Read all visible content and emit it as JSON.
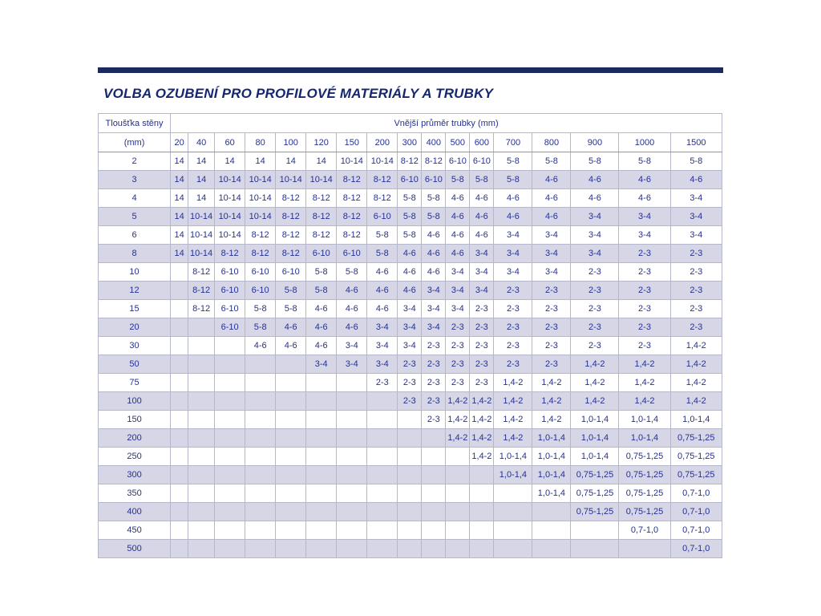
{
  "title": "VOLBA OZUBENÍ PRO PROFILOVÉ MATERIÁLY A TRUBKY",
  "colors": {
    "accent_bar": "#1b2a5e",
    "title_text": "#15276f",
    "cell_text": "#253191",
    "row_alt_background": "#d6d6e6",
    "grid_border": "#b4b8ca",
    "background": "#ffffff"
  },
  "table": {
    "corner_top": "Tloušťka stěny",
    "corner_unit": "(mm)",
    "span_header": "Vnější průměr trubky (mm)",
    "columns": [
      "20",
      "40",
      "60",
      "80",
      "100",
      "120",
      "150",
      "200",
      "300",
      "400",
      "500",
      "600",
      "700",
      "800",
      "900",
      "1000",
      "1500"
    ],
    "rows": [
      {
        "label": "2",
        "values": [
          "14",
          "14",
          "14",
          "14",
          "14",
          "14",
          "10-14",
          "10-14",
          "8-12",
          "8-12",
          "6-10",
          "6-10",
          "5-8",
          "5-8",
          "5-8",
          "5-8",
          "5-8"
        ]
      },
      {
        "label": "3",
        "values": [
          "14",
          "14",
          "10-14",
          "10-14",
          "10-14",
          "10-14",
          "8-12",
          "8-12",
          "6-10",
          "6-10",
          "5-8",
          "5-8",
          "5-8",
          "4-6",
          "4-6",
          "4-6",
          "4-6"
        ]
      },
      {
        "label": "4",
        "values": [
          "14",
          "14",
          "10-14",
          "10-14",
          "8-12",
          "8-12",
          "8-12",
          "8-12",
          "5-8",
          "5-8",
          "4-6",
          "4-6",
          "4-6",
          "4-6",
          "4-6",
          "4-6",
          "3-4"
        ]
      },
      {
        "label": "5",
        "values": [
          "14",
          "10-14",
          "10-14",
          "10-14",
          "8-12",
          "8-12",
          "8-12",
          "6-10",
          "5-8",
          "5-8",
          "4-6",
          "4-6",
          "4-6",
          "4-6",
          "3-4",
          "3-4",
          "3-4"
        ]
      },
      {
        "label": "6",
        "values": [
          "14",
          "10-14",
          "10-14",
          "8-12",
          "8-12",
          "8-12",
          "8-12",
          "5-8",
          "5-8",
          "4-6",
          "4-6",
          "4-6",
          "3-4",
          "3-4",
          "3-4",
          "3-4",
          "3-4"
        ]
      },
      {
        "label": "8",
        "values": [
          "14",
          "10-14",
          "8-12",
          "8-12",
          "8-12",
          "6-10",
          "6-10",
          "5-8",
          "4-6",
          "4-6",
          "4-6",
          "3-4",
          "3-4",
          "3-4",
          "3-4",
          "2-3",
          "2-3"
        ]
      },
      {
        "label": "10",
        "values": [
          "",
          "8-12",
          "6-10",
          "6-10",
          "6-10",
          "5-8",
          "5-8",
          "4-6",
          "4-6",
          "4-6",
          "3-4",
          "3-4",
          "3-4",
          "3-4",
          "2-3",
          "2-3",
          "2-3"
        ]
      },
      {
        "label": "12",
        "values": [
          "",
          "8-12",
          "6-10",
          "6-10",
          "5-8",
          "5-8",
          "4-6",
          "4-6",
          "4-6",
          "3-4",
          "3-4",
          "3-4",
          "2-3",
          "2-3",
          "2-3",
          "2-3",
          "2-3"
        ]
      },
      {
        "label": "15",
        "values": [
          "",
          "8-12",
          "6-10",
          "5-8",
          "5-8",
          "4-6",
          "4-6",
          "4-6",
          "3-4",
          "3-4",
          "3-4",
          "2-3",
          "2-3",
          "2-3",
          "2-3",
          "2-3",
          "2-3"
        ]
      },
      {
        "label": "20",
        "values": [
          "",
          "",
          "6-10",
          "5-8",
          "4-6",
          "4-6",
          "4-6",
          "3-4",
          "3-4",
          "3-4",
          "2-3",
          "2-3",
          "2-3",
          "2-3",
          "2-3",
          "2-3",
          "2-3"
        ]
      },
      {
        "label": "30",
        "values": [
          "",
          "",
          "",
          "4-6",
          "4-6",
          "4-6",
          "3-4",
          "3-4",
          "3-4",
          "2-3",
          "2-3",
          "2-3",
          "2-3",
          "2-3",
          "2-3",
          "2-3",
          "1,4-2"
        ]
      },
      {
        "label": "50",
        "values": [
          "",
          "",
          "",
          "",
          "",
          "3-4",
          "3-4",
          "3-4",
          "2-3",
          "2-3",
          "2-3",
          "2-3",
          "2-3",
          "2-3",
          "1,4-2",
          "1,4-2",
          "1,4-2"
        ]
      },
      {
        "label": "75",
        "values": [
          "",
          "",
          "",
          "",
          "",
          "",
          "",
          "2-3",
          "2-3",
          "2-3",
          "2-3",
          "2-3",
          "1,4-2",
          "1,4-2",
          "1,4-2",
          "1,4-2",
          "1,4-2"
        ]
      },
      {
        "label": "100",
        "values": [
          "",
          "",
          "",
          "",
          "",
          "",
          "",
          "",
          "2-3",
          "2-3",
          "1,4-2",
          "1,4-2",
          "1,4-2",
          "1,4-2",
          "1,4-2",
          "1,4-2",
          "1,4-2"
        ]
      },
      {
        "label": "150",
        "values": [
          "",
          "",
          "",
          "",
          "",
          "",
          "",
          "",
          "",
          "2-3",
          "1,4-2",
          "1,4-2",
          "1,4-2",
          "1,4-2",
          "1,0-1,4",
          "1,0-1,4",
          "1,0-1,4"
        ]
      },
      {
        "label": "200",
        "values": [
          "",
          "",
          "",
          "",
          "",
          "",
          "",
          "",
          "",
          "",
          "1,4-2",
          "1,4-2",
          "1,4-2",
          "1,0-1,4",
          "1,0-1,4",
          "1,0-1,4",
          "0,75-1,25"
        ]
      },
      {
        "label": "250",
        "values": [
          "",
          "",
          "",
          "",
          "",
          "",
          "",
          "",
          "",
          "",
          "",
          "1,4-2",
          "1,0-1,4",
          "1,0-1,4",
          "1,0-1,4",
          "0,75-1,25",
          "0,75-1,25"
        ]
      },
      {
        "label": "300",
        "values": [
          "",
          "",
          "",
          "",
          "",
          "",
          "",
          "",
          "",
          "",
          "",
          "",
          "1,0-1,4",
          "1,0-1,4",
          "0,75-1,25",
          "0,75-1,25",
          "0,75-1,25"
        ]
      },
      {
        "label": "350",
        "values": [
          "",
          "",
          "",
          "",
          "",
          "",
          "",
          "",
          "",
          "",
          "",
          "",
          "",
          "1,0-1,4",
          "0,75-1,25",
          "0,75-1,25",
          "0,7-1,0"
        ]
      },
      {
        "label": "400",
        "values": [
          "",
          "",
          "",
          "",
          "",
          "",
          "",
          "",
          "",
          "",
          "",
          "",
          "",
          "",
          "0,75-1,25",
          "0,75-1,25",
          "0,7-1,0"
        ]
      },
      {
        "label": "450",
        "values": [
          "",
          "",
          "",
          "",
          "",
          "",
          "",
          "",
          "",
          "",
          "",
          "",
          "",
          "",
          "",
          "0,7-1,0",
          "0,7-1,0"
        ]
      },
      {
        "label": "500",
        "values": [
          "",
          "",
          "",
          "",
          "",
          "",
          "",
          "",
          "",
          "",
          "",
          "",
          "",
          "",
          "",
          "",
          "0,7-1,0"
        ]
      }
    ]
  }
}
